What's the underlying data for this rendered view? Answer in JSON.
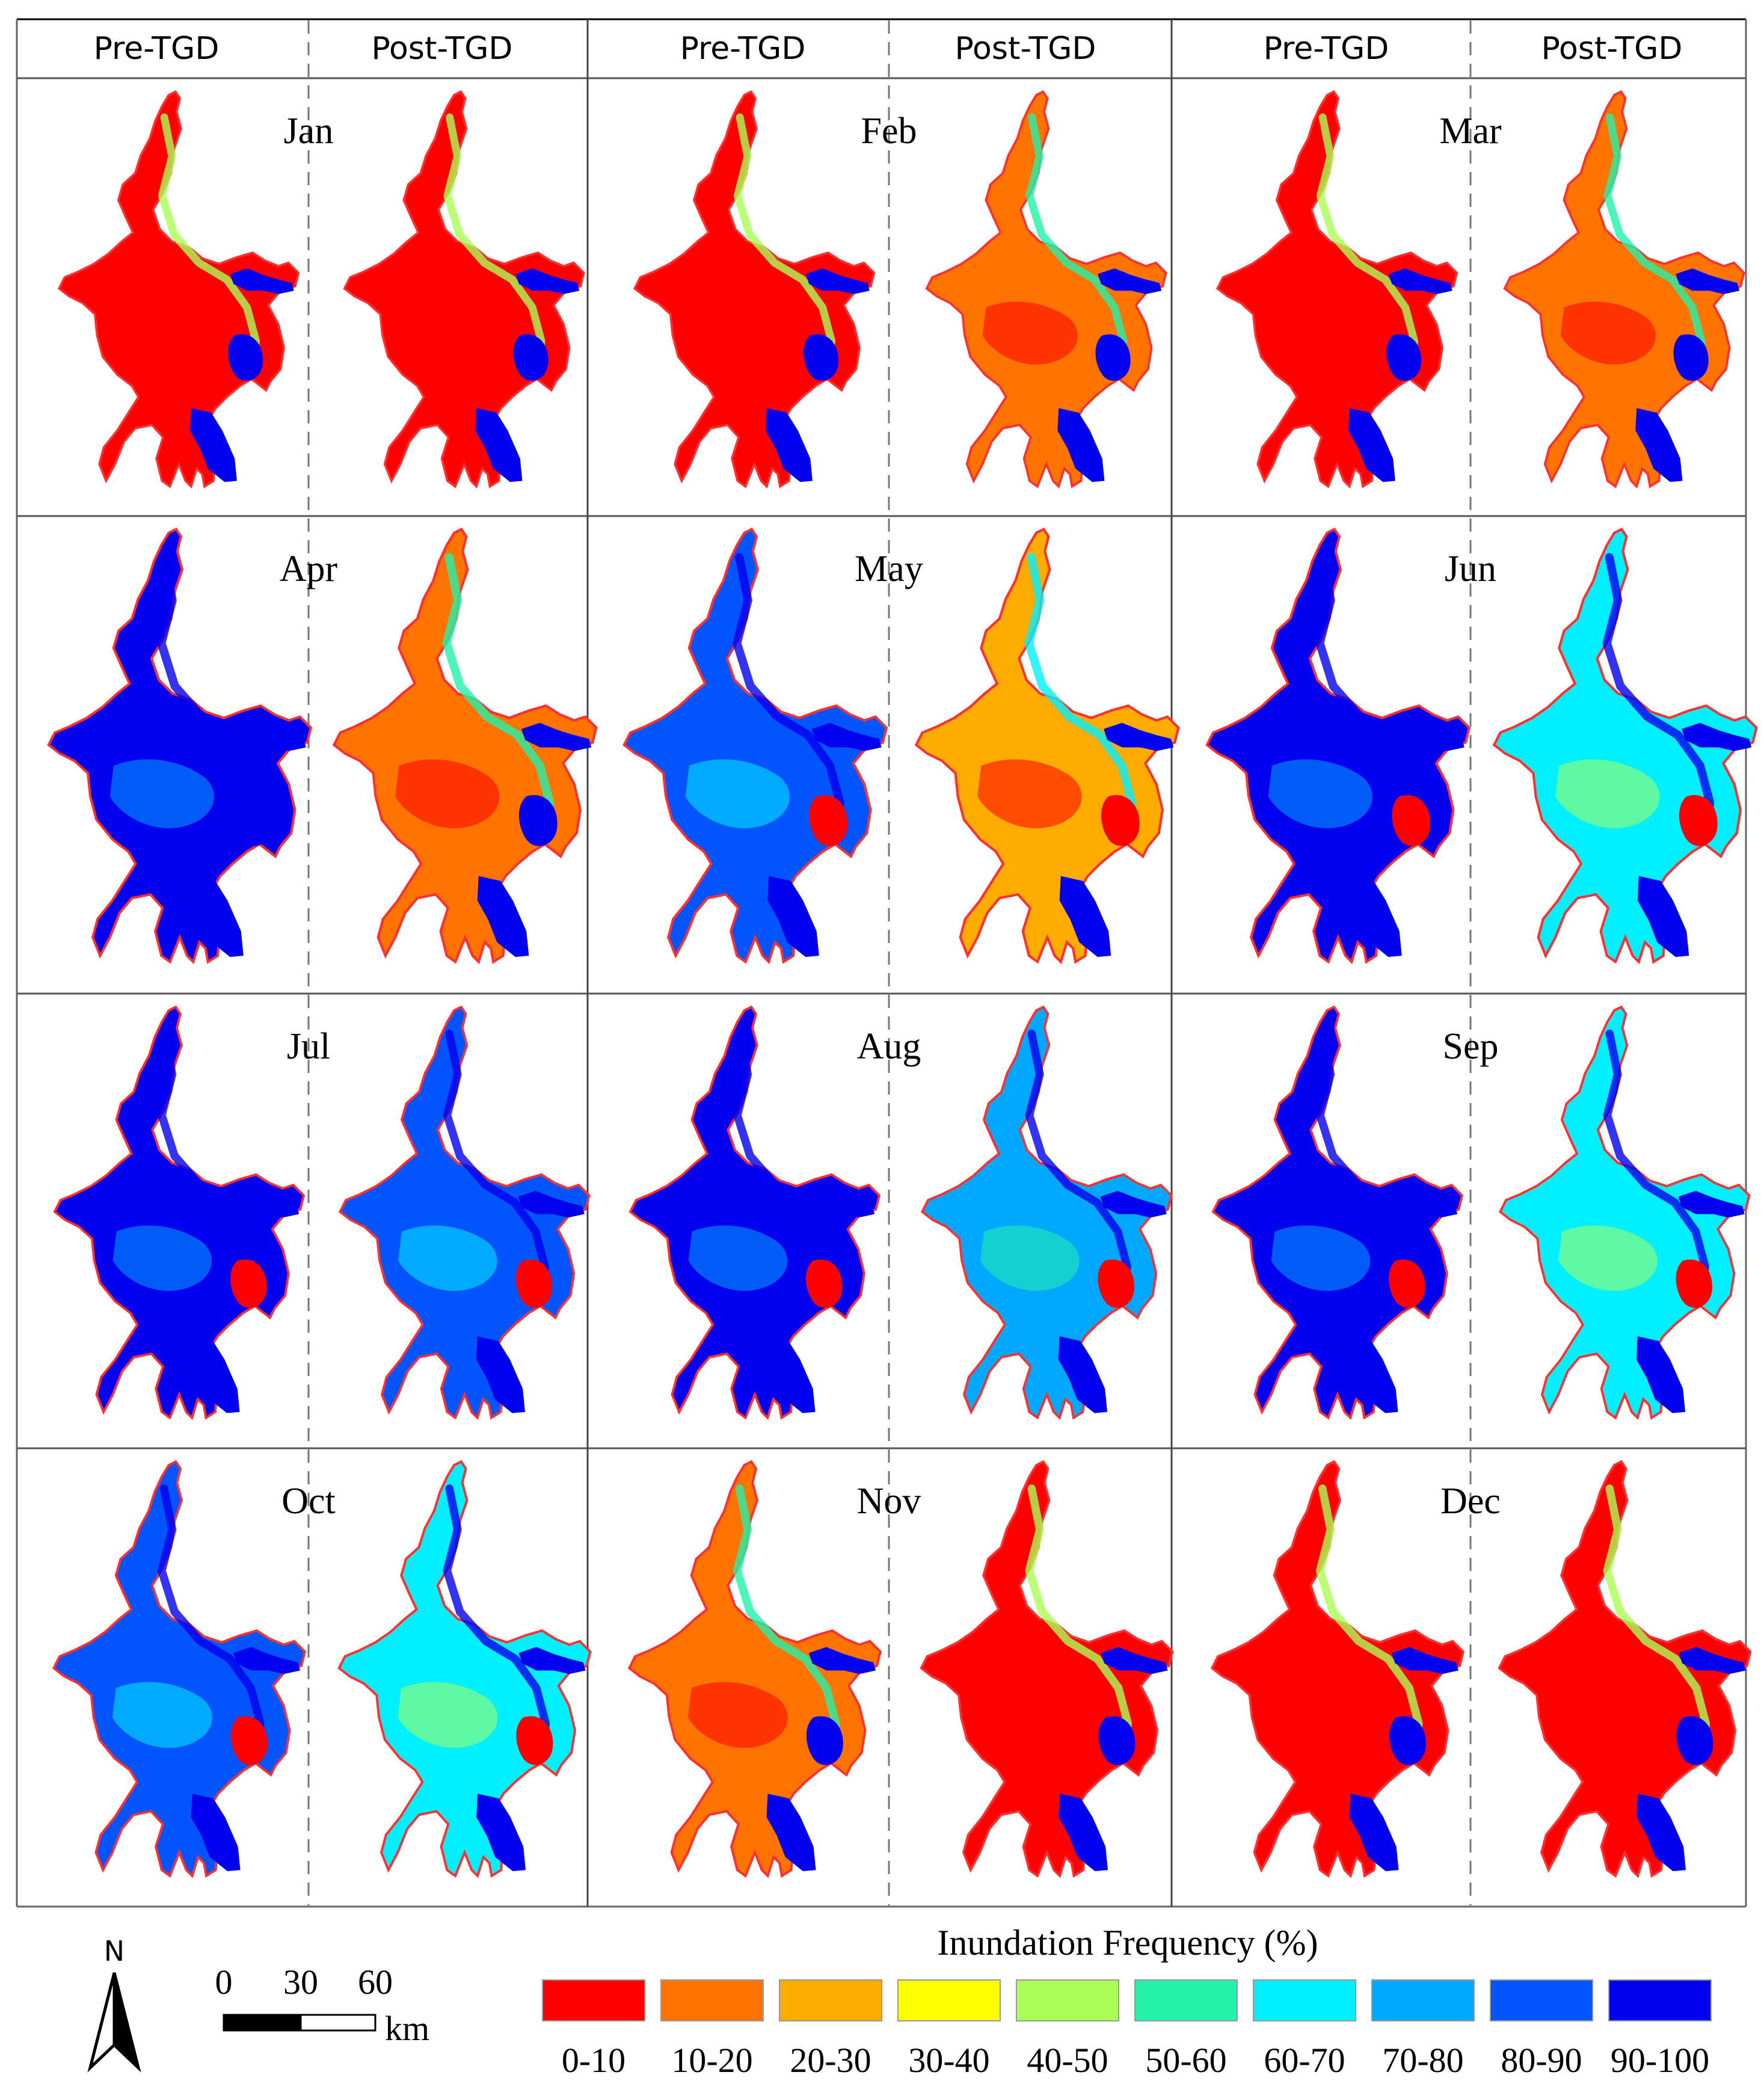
{
  "columns": [
    "Pre-TGD",
    "Post-TGD",
    "Pre-TGD",
    "Post-TGD",
    "Pre-TGD",
    "Post-TGD"
  ],
  "panels": [
    {
      "month": "Jan",
      "pre_dominant": "0-10",
      "post_dominant": "0-10"
    },
    {
      "month": "Feb",
      "pre_dominant": "0-10",
      "post_dominant": "10-20"
    },
    {
      "month": "Mar",
      "pre_dominant": "0-10",
      "post_dominant": "10-20"
    },
    {
      "month": "Apr",
      "pre_dominant": "90-100",
      "post_dominant": "10-20"
    },
    {
      "month": "May",
      "pre_dominant": "80-90",
      "post_dominant": "20-30"
    },
    {
      "month": "Jun",
      "pre_dominant": "90-100",
      "post_dominant": "60-70"
    },
    {
      "month": "Jul",
      "pre_dominant": "90-100",
      "post_dominant": "80-90"
    },
    {
      "month": "Aug",
      "pre_dominant": "90-100",
      "post_dominant": "70-80"
    },
    {
      "month": "Sep",
      "pre_dominant": "90-100",
      "post_dominant": "60-70"
    },
    {
      "month": "Oct",
      "pre_dominant": "80-90",
      "post_dominant": "60-70"
    },
    {
      "month": "Nov",
      "pre_dominant": "10-20",
      "post_dominant": "0-10"
    },
    {
      "month": "Dec",
      "pre_dominant": "0-10",
      "post_dominant": "0-10"
    }
  ],
  "legend": {
    "title": "Inundation Frequency (%)",
    "classes": [
      {
        "label": "0-10",
        "color": "#ff0000"
      },
      {
        "label": "10-20",
        "color": "#ff7300"
      },
      {
        "label": "20-30",
        "color": "#ffab00"
      },
      {
        "label": "30-40",
        "color": "#ffff00"
      },
      {
        "label": "40-50",
        "color": "#aaff55"
      },
      {
        "label": "50-60",
        "color": "#22f2aa"
      },
      {
        "label": "60-70",
        "color": "#00f0ff"
      },
      {
        "label": "70-80",
        "color": "#00a8ff"
      },
      {
        "label": "80-90",
        "color": "#0055ff"
      },
      {
        "label": "90-100",
        "color": "#0000ee"
      }
    ]
  },
  "north_arrow": {
    "label": "N",
    "icon": "north-arrow-icon"
  },
  "scale_bar": {
    "ticks": [
      "0",
      "30",
      "60"
    ],
    "unit": "km"
  }
}
